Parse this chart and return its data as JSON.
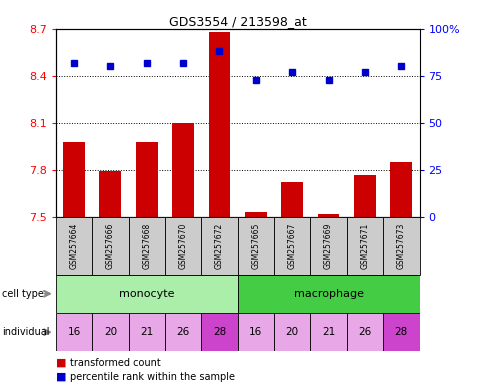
{
  "title": "GDS3554 / 213598_at",
  "samples": [
    "GSM257664",
    "GSM257666",
    "GSM257668",
    "GSM257670",
    "GSM257672",
    "GSM257665",
    "GSM257667",
    "GSM257669",
    "GSM257671",
    "GSM257673"
  ],
  "red_values": [
    7.98,
    7.79,
    7.98,
    8.1,
    8.68,
    7.53,
    7.72,
    7.52,
    7.77,
    7.85
  ],
  "blue_values": [
    82,
    80,
    82,
    82,
    88,
    73,
    77,
    73,
    77,
    80
  ],
  "individuals": [
    "16",
    "20",
    "21",
    "26",
    "28",
    "16",
    "20",
    "21",
    "26",
    "28"
  ],
  "ind_colors": [
    "#e8a8e8",
    "#e8a8e8",
    "#e8a8e8",
    "#e8a8e8",
    "#cc44cc",
    "#e8a8e8",
    "#e8a8e8",
    "#e8a8e8",
    "#e8a8e8",
    "#cc44cc"
  ],
  "cell_type_colors": {
    "monocyte": "#aaeeaa",
    "macrophage": "#44cc44"
  },
  "ylim_left": [
    7.5,
    8.7
  ],
  "ylim_right": [
    0,
    100
  ],
  "yticks_left": [
    7.5,
    7.8,
    8.1,
    8.4,
    8.7
  ],
  "yticks_right": [
    0,
    25,
    50,
    75,
    100
  ],
  "ytick_labels_left": [
    "7.5",
    "7.8",
    "8.1",
    "8.4",
    "8.7"
  ],
  "ytick_labels_right": [
    "0",
    "25",
    "50",
    "75",
    "100%"
  ],
  "bar_color": "#cc0000",
  "dot_color": "#0000cc",
  "bar_bottom": 7.5,
  "bar_width": 0.6,
  "sample_box_color": "#cccccc"
}
